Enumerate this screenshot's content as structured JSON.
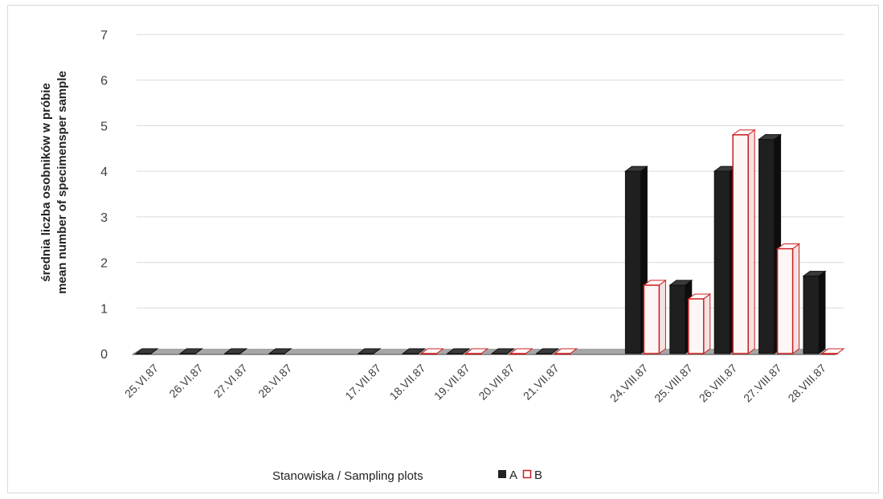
{
  "chart_data": {
    "type": "bar",
    "title": "",
    "xlabel": "Stanowiska / Sampling plots",
    "ylabel_line1": "średnia liczba osobników w próbie",
    "ylabel_line2": "mean number of specimensper sample",
    "ylim": [
      0,
      7
    ],
    "yticks": [
      "0",
      "1",
      "2",
      "3",
      "4",
      "5",
      "6",
      "7"
    ],
    "grid": true,
    "legend_placement": "bottom",
    "categories": [
      "25.VI.87",
      "26.VI.87",
      "27.VI.87",
      "28.VI.87",
      "",
      "17.VII.87",
      "18.VII.87",
      "19.VII.87",
      "20.VII.87",
      "21.VII.87",
      "",
      "24.VIII.87",
      "25.VIII.87",
      "26.VIII.87",
      "27.VIII.87",
      "28.VIII.87"
    ],
    "series": [
      {
        "name": "A",
        "color": "#222222",
        "values": [
          0,
          0,
          0,
          0,
          null,
          0,
          0,
          0,
          0,
          0,
          null,
          4.0,
          1.5,
          4.0,
          4.7,
          1.7
        ]
      },
      {
        "name": "B",
        "color": "#cc1f1f",
        "values": [
          null,
          null,
          null,
          null,
          null,
          null,
          0,
          0,
          0,
          0,
          null,
          1.5,
          1.2,
          4.8,
          2.3,
          0
        ]
      }
    ]
  }
}
